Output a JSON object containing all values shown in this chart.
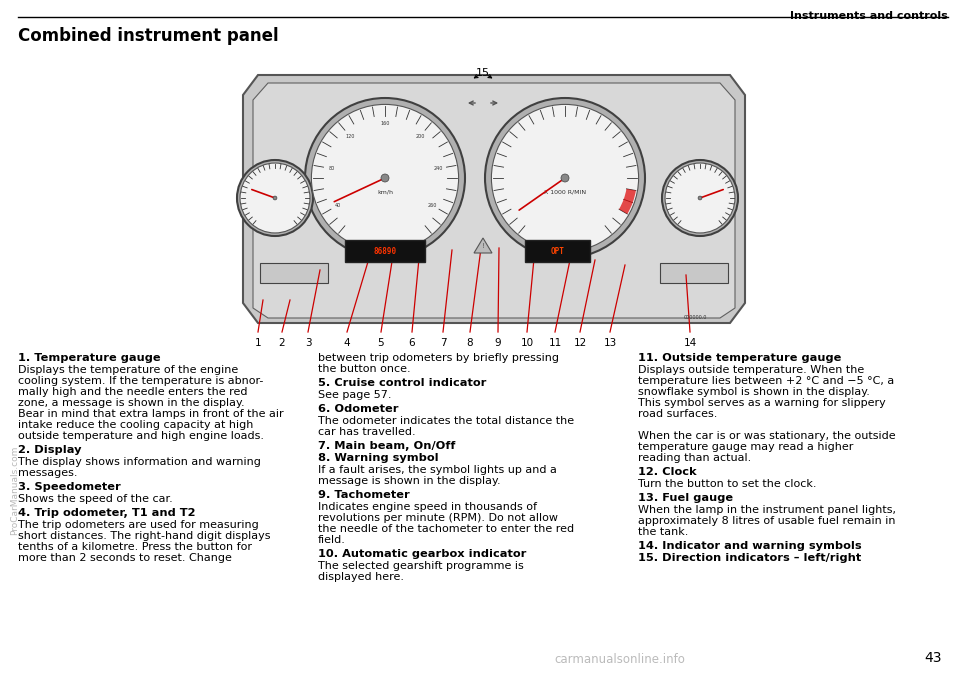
{
  "page_title": "Instruments and controls",
  "section_title": "Combined instrument panel",
  "page_number": "43",
  "watermark_left": "ProCarManuals.com",
  "watermark_bottom": "carmanualsonline.info",
  "col1_items": [
    {
      "bold": "1. Temperature gauge",
      "text": "Displays the temperature of the engine\ncooling system. If the temperature is abnor-\nmally high and the needle enters the red\nzone, a message is shown in the display.\nBear in mind that extra lamps in front of the air\nintake reduce the cooling capacity at high\noutside temperature and high engine loads."
    },
    {
      "bold": "2. Display",
      "text": "The display shows information and warning\nmessages."
    },
    {
      "bold": "3. Speedometer",
      "text": "Shows the speed of the car."
    },
    {
      "bold": "4. Trip odometer, T1 and T2",
      "text": "The trip odometers are used for measuring\nshort distances. The right-hand digit displays\ntenths of a kilometre. Press the button for\nmore than 2 seconds to reset. Change"
    }
  ],
  "col2_items": [
    {
      "text": "between trip odometers by briefly pressing\nthe button once."
    },
    {
      "bold": "5. Cruise control indicator",
      "text": "See page 57."
    },
    {
      "bold": "6. Odometer",
      "text": "The odometer indicates the total distance the\ncar has travelled."
    },
    {
      "bold": "7. Main beam, On/Off"
    },
    {
      "bold": "8. Warning symbol",
      "text": "If a fault arises, the symbol lights up and a\nmessage is shown in the display."
    },
    {
      "bold": "9. Tachometer",
      "text": "Indicates engine speed in thousands of\nrevolutions per minute (RPM). Do not allow\nthe needle of the tachometer to enter the red\nfield."
    },
    {
      "bold": "10. Automatic gearbox indicator",
      "text": "The selected gearshift programme is\ndisplayed here."
    }
  ],
  "col3_items": [
    {
      "bold": "11. Outside temperature gauge",
      "text": "Displays outside temperature. When the\ntemperature lies between +2 °C and −5 °C, a\nsnowflake symbol is shown in the display.\nThis symbol serves as a warning for slippery\nroad surfaces.\n\nWhen the car is or was stationary, the outside\ntemperature gauge may read a higher\nreading than actual."
    },
    {
      "bold": "12. Clock",
      "text": "Turn the button to set the clock."
    },
    {
      "bold": "13. Fuel gauge",
      "text": "When the lamp in the instrument panel lights,\napproximately 8 litres of usable fuel remain in\nthe tank."
    },
    {
      "bold": "14. Indicator and warning symbols"
    },
    {
      "bold": "15. Direction indicators – left/right"
    }
  ],
  "bg_color": "#ffffff",
  "text_color": "#000000",
  "panel_bg": "#c8c8c8",
  "panel_edge": "#555555",
  "gauge_bg": "#e0e0e0",
  "gauge_inner_bg": "#f0f0f0"
}
